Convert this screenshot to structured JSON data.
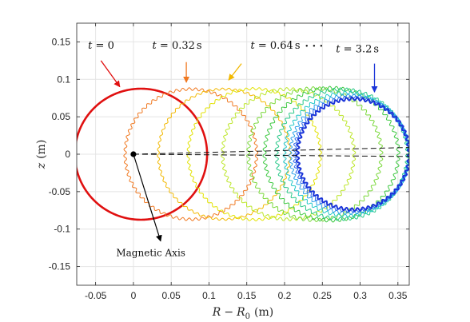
{
  "chart_data": {
    "type": "line",
    "title": "",
    "xlabel": "R − R0 (m)",
    "xlabel_var": "R",
    "xlabel_minus": "−",
    "xlabel_sub_base": "R",
    "xlabel_sub": "0",
    "xlabel_unit": "(m)",
    "ylabel": "z (m)",
    "ylabel_var": "z",
    "ylabel_unit": "(m)",
    "xlim": [
      -0.075,
      0.365
    ],
    "ylim": [
      -0.175,
      0.175
    ],
    "xticks": [
      -0.05,
      0,
      0.05,
      0.1,
      0.15,
      0.2,
      0.25,
      0.3,
      0.35
    ],
    "xtick_labels": [
      "-0.05",
      "0",
      "0.05",
      "0.1",
      "0.15",
      "0.2",
      "0.25",
      "0.3",
      "0.35"
    ],
    "yticks": [
      -0.15,
      -0.1,
      -0.05,
      0,
      0.05,
      0.1,
      0.15
    ],
    "ytick_labels": [
      "-0.15",
      "-0.1",
      "-0.05",
      "0",
      "0.05",
      "0.1",
      "0.15"
    ],
    "grid": true,
    "legend": "none",
    "magnetic_axis": {
      "x": 0,
      "y": 0
    },
    "series": [
      {
        "cx": 0.01,
        "r": 0.0875,
        "ripple": 0.0,
        "color": "#e01010",
        "width": 2.6
      },
      {
        "cx": 0.076,
        "r": 0.087,
        "ripple": 0.0018,
        "color": "#f07820",
        "width": 1.0
      },
      {
        "cx": 0.12,
        "r": 0.087,
        "ripple": 0.0014,
        "color": "#f2b800",
        "width": 1.0
      },
      {
        "cx": 0.16,
        "r": 0.0875,
        "ripple": 0.0016,
        "color": "#e2e200",
        "width": 1.0
      },
      {
        "cx": 0.205,
        "r": 0.087,
        "ripple": 0.002,
        "color": "#bce628",
        "width": 1.0
      },
      {
        "cx": 0.24,
        "r": 0.088,
        "ripple": 0.0022,
        "color": "#7ad83a",
        "width": 1.0
      },
      {
        "cx": 0.262,
        "r": 0.0885,
        "ripple": 0.0022,
        "color": "#3cc840",
        "width": 1.0
      },
      {
        "cx": 0.276,
        "r": 0.0865,
        "ripple": 0.0022,
        "color": "#27c888",
        "width": 1.0
      },
      {
        "cx": 0.282,
        "r": 0.082,
        "ripple": 0.002,
        "color": "#22c8c8",
        "width": 1.0
      },
      {
        "cx": 0.286,
        "r": 0.0785,
        "ripple": 0.002,
        "color": "#2aa0e8",
        "width": 1.0
      },
      {
        "cx": 0.289,
        "r": 0.076,
        "ripple": 0.002,
        "color": "#2a66e8",
        "width": 1.0
      },
      {
        "cx": 0.291,
        "r": 0.074,
        "ripple": 0.002,
        "color": "#1a34d8",
        "width": 2.0
      }
    ],
    "annotations": [
      {
        "var": "t",
        "eq": " = ",
        "value": "0",
        "unit": "",
        "color": "#e01010",
        "text_x": -0.06,
        "text_y": 0.141,
        "arrow_from": [
          -0.043,
          0.125
        ],
        "arrow_to": [
          -0.018,
          0.09
        ]
      },
      {
        "var": "t",
        "eq": " = ",
        "value": "0.32",
        "unit": "s",
        "color": "#f07820",
        "text_x": 0.025,
        "text_y": 0.141,
        "arrow_from": [
          0.07,
          0.123
        ],
        "arrow_to": [
          0.07,
          0.096
        ]
      },
      {
        "var": "t",
        "eq": " = ",
        "value": "0.64",
        "unit": "s",
        "color": "#f2b800",
        "text_x": 0.155,
        "text_y": 0.141,
        "arrow_from": [
          0.143,
          0.121
        ],
        "arrow_to": [
          0.126,
          0.099
        ]
      },
      {
        "var": "t",
        "eq": " = ",
        "value": "3.2",
        "unit": "s",
        "color": "#1a34d8",
        "text_x": 0.268,
        "text_y": 0.136,
        "arrow_from": [
          0.319,
          0.121
        ],
        "arrow_to": [
          0.319,
          0.083
        ]
      }
    ],
    "ellipsis": "· · ·",
    "ellipsis_x": 0.239,
    "ellipsis_y": 0.14,
    "magnetic_axis_label": "Magnetic Axis",
    "magnetic_axis_label_x": 0.023,
    "magnetic_axis_label_y": -0.136,
    "magnetic_axis_arrow_to": [
      0.036,
      -0.116
    ],
    "dashed_lines": [
      {
        "from": [
          0,
          0
        ],
        "to": [
          0.365,
          0.009
        ]
      },
      {
        "from": [
          0,
          0
        ],
        "to": [
          0.365,
          -0.003
        ]
      }
    ]
  }
}
